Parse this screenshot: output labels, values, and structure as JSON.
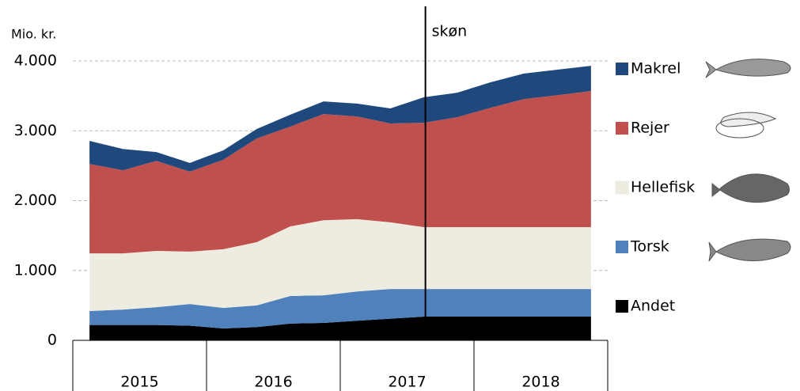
{
  "chart_data": {
    "type": "stacked_area",
    "y_axis_label": "Mio. kr.",
    "annotation": {
      "label": "skøn",
      "x_index": 10
    },
    "categories": [
      null,
      null,
      null,
      null,
      null,
      null,
      null,
      null,
      null,
      null,
      null,
      null,
      null,
      null,
      null,
      null
    ],
    "year_groups": [
      "2015",
      "2016",
      "2017",
      "2018"
    ],
    "ylim": [
      0,
      4000
    ],
    "yticks": [
      0,
      {
        "value": 1000,
        "label": "1.000"
      },
      {
        "value": 2000,
        "label": "2.000"
      },
      {
        "value": 3000,
        "label": "3.000"
      },
      {
        "value": 4000,
        "label": "4.000"
      }
    ],
    "grid": true,
    "legend": "right",
    "series": [
      {
        "name": "Andet",
        "color": "#000000",
        "values": [
          220,
          220,
          220,
          210,
          170,
          190,
          240,
          250,
          280,
          310,
          340,
          340,
          340,
          340,
          340,
          340
        ]
      },
      {
        "name": "Torsk",
        "color": "#4f81bd",
        "values": [
          200,
          220,
          255,
          310,
          295,
          310,
          395,
          395,
          420,
          425,
          395,
          395,
          395,
          395,
          395,
          395
        ]
      },
      {
        "name": "Hellefisk",
        "color": "#eeece1",
        "values": [
          825,
          805,
          805,
          750,
          840,
          905,
          995,
          1075,
          1035,
          955,
          885,
          885,
          885,
          885,
          885,
          885
        ]
      },
      {
        "name": "Rejer",
        "color": "#c0504d",
        "values": [
          1280,
          1190,
          1290,
          1145,
          1280,
          1485,
          1430,
          1520,
          1470,
          1415,
          1495,
          1575,
          1710,
          1835,
          1890,
          1950
        ]
      },
      {
        "name": "Makrel",
        "color": "#1f497d",
        "values": [
          330,
          305,
          125,
          125,
          135,
          135,
          170,
          180,
          185,
          215,
          365,
          350,
          365,
          365,
          365,
          360
        ]
      }
    ]
  }
}
